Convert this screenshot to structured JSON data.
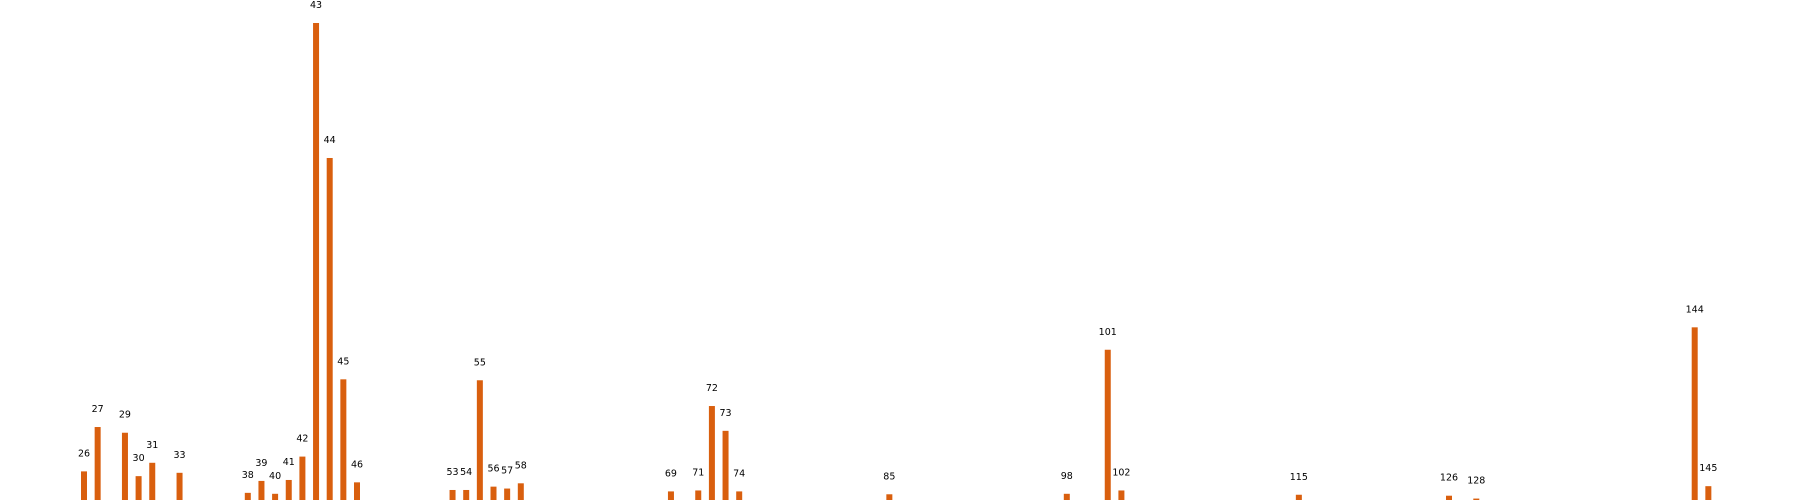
{
  "chart_data": {
    "type": "bar",
    "color": "#d95f0e",
    "title": "",
    "xlabel": "",
    "ylabel": "",
    "grid": false,
    "axes_visible": false,
    "x_range": [
      20,
      152
    ],
    "ylim": [
      0,
      1
    ],
    "bars": [
      {
        "label": "26",
        "x": 26,
        "value": 0.06
      },
      {
        "label": "27",
        "x": 27,
        "value": 0.153
      },
      {
        "label": "29",
        "x": 29,
        "value": 0.141
      },
      {
        "label": "30",
        "x": 30,
        "value": 0.05
      },
      {
        "label": "31",
        "x": 31,
        "value": 0.078
      },
      {
        "label": "33",
        "x": 33,
        "value": 0.057
      },
      {
        "label": "38",
        "x": 38,
        "value": 0.015
      },
      {
        "label": "39",
        "x": 39,
        "value": 0.04
      },
      {
        "label": "40",
        "x": 40,
        "value": 0.013
      },
      {
        "label": "41",
        "x": 41,
        "value": 0.042
      },
      {
        "label": "42",
        "x": 42,
        "value": 0.091
      },
      {
        "label": "43",
        "x": 43,
        "value": 1.0
      },
      {
        "label": "44",
        "x": 44,
        "value": 0.717
      },
      {
        "label": "45",
        "x": 45,
        "value": 0.253
      },
      {
        "label": "46",
        "x": 46,
        "value": 0.037
      },
      {
        "label": "53",
        "x": 53,
        "value": 0.021
      },
      {
        "label": "54",
        "x": 54,
        "value": 0.021
      },
      {
        "label": "55",
        "x": 55,
        "value": 0.251
      },
      {
        "label": "56",
        "x": 56,
        "value": 0.028
      },
      {
        "label": "57",
        "x": 57,
        "value": 0.024
      },
      {
        "label": "58",
        "x": 58,
        "value": 0.035
      },
      {
        "label": "69",
        "x": 69,
        "value": 0.018
      },
      {
        "label": "71",
        "x": 71,
        "value": 0.02
      },
      {
        "label": "72",
        "x": 72,
        "value": 0.197
      },
      {
        "label": "73",
        "x": 73,
        "value": 0.145
      },
      {
        "label": "74",
        "x": 74,
        "value": 0.018
      },
      {
        "label": "85",
        "x": 85,
        "value": 0.012
      },
      {
        "label": "98",
        "x": 98,
        "value": 0.013
      },
      {
        "label": "101",
        "x": 101,
        "value": 0.315
      },
      {
        "label": "102",
        "x": 102,
        "value": 0.02
      },
      {
        "label": "115",
        "x": 115,
        "value": 0.011
      },
      {
        "label": "126",
        "x": 126,
        "value": 0.009
      },
      {
        "label": "128",
        "x": 128,
        "value": 0.003
      },
      {
        "label": "144",
        "x": 144,
        "value": 0.362
      },
      {
        "label": "145",
        "x": 145,
        "value": 0.029
      }
    ]
  }
}
